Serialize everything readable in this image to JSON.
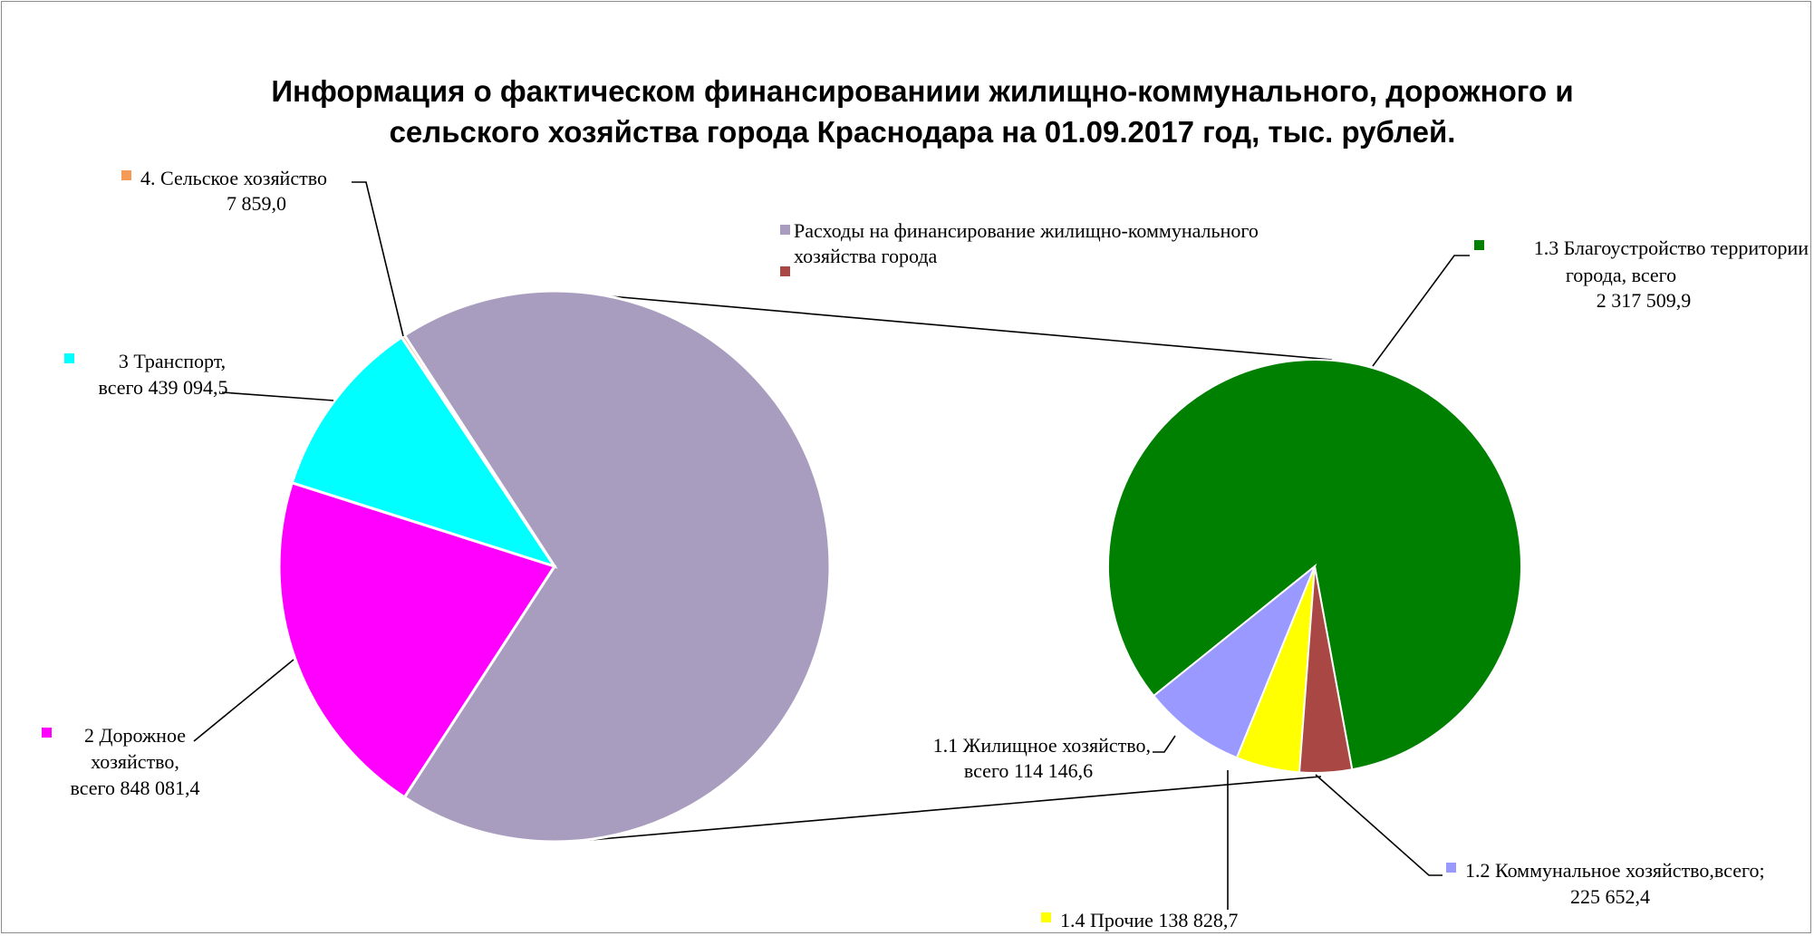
{
  "chart_data": {
    "type": "pie",
    "title_lines": [
      "Информация о фактическом финансированиии жилищно-коммунального, дорожного и",
      "сельского хозяйства города Краснодара на 01.09.2017 год, тыс. рублей."
    ],
    "legend": [
      {
        "name": "Расходы на финансирование жилищно-коммунального",
        "name_line2": "хозяйства города",
        "color": "#A99DBF"
      },
      {
        "name": "",
        "color": "#A84743"
      }
    ],
    "main_pie": {
      "slices": [
        {
          "key": "housing_total",
          "label_lines": [],
          "value": 2796137.6,
          "color": "#A99DBF",
          "exploded_into_secondary": true
        },
        {
          "key": "road",
          "label_lines": [
            "2 Дорожное",
            "хозяйство,",
            "всего 848 081,4"
          ],
          "value": 848081.4,
          "color": "#FF00FF"
        },
        {
          "key": "transport",
          "label_lines": [
            "3 Транспорт,",
            "всего 439 094,5"
          ],
          "value": 439094.5,
          "color": "#00FFFF"
        },
        {
          "key": "agri",
          "label_lines": [
            "4. Сельское хозяйство",
            "7 859,0"
          ],
          "value": 7859.0,
          "color": "#F59B56"
        }
      ]
    },
    "secondary_pie": {
      "slices": [
        {
          "key": "improvement",
          "label_lines": [
            "1.3 Благоустройство территории",
            "города, всего",
            "2 317 509,9"
          ],
          "value": 2317509.9,
          "color": "#008000"
        },
        {
          "key": "communal",
          "label_lines": [
            "1.2 Коммунальное хозяйство,всего;",
            "225 652,4"
          ],
          "value": 225652.4,
          "color": "#9999FF"
        },
        {
          "key": "other",
          "label_lines": [
            "1.4 Прочие 138 828,7"
          ],
          "value": 138828.7,
          "color": "#FFFF00"
        },
        {
          "key": "housing",
          "label_lines": [
            "1.1 Жилищное хозяйство,",
            "всего 114 146,6"
          ],
          "value": 114146.6,
          "color": "#A84743"
        }
      ]
    }
  }
}
